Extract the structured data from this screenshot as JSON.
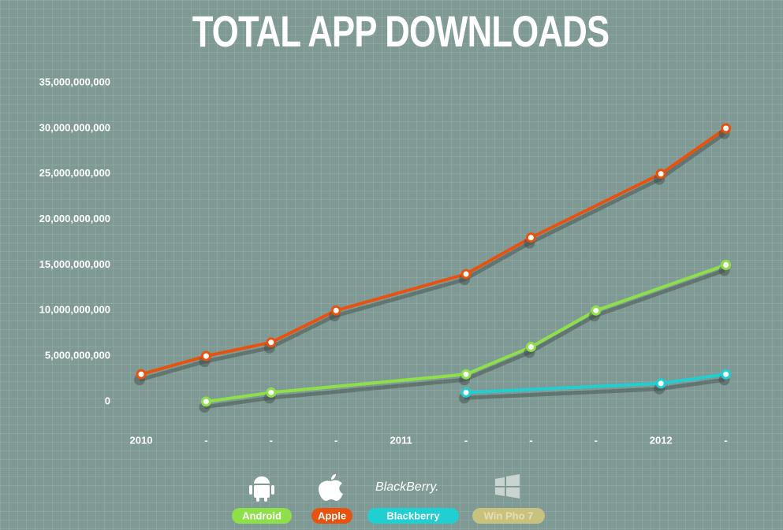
{
  "chart_data": {
    "type": "line",
    "title": "TOTAL APP DOWNLOADS",
    "categories": [
      "2010",
      "-",
      "-",
      "-",
      "2011",
      "-",
      "-",
      "-",
      "2012",
      "-"
    ],
    "series": [
      {
        "name": "Android",
        "color": "#8ee04a",
        "values": [
          null,
          0,
          1000000000,
          null,
          null,
          3000000000,
          6000000000,
          10000000000,
          null,
          15000000000
        ]
      },
      {
        "name": "Apple",
        "color": "#e8520e",
        "values": [
          3000000000,
          5000000000,
          6500000000,
          10000000000,
          null,
          14000000000,
          18000000000,
          null,
          25000000000,
          30000000000
        ]
      },
      {
        "name": "Blackberry",
        "color": "#20cfd2",
        "values": [
          null,
          null,
          null,
          null,
          null,
          1000000000,
          null,
          null,
          2000000000,
          3000000000
        ]
      },
      {
        "name": "Win Pho 7",
        "color": "#c9c27e",
        "values": [
          null,
          null,
          null,
          null,
          null,
          null,
          null,
          null,
          null,
          null
        ]
      }
    ],
    "blackberry_logo": "BlackBerry.",
    "ylim": [
      0,
      35000000000
    ],
    "yticks": [
      0,
      {
        "value": 5000000000,
        "label": "5,000,000,000"
      },
      {
        "value": 10000000000,
        "label": "10,000,000,000"
      },
      {
        "value": 15000000000,
        "label": "15,000,000,000"
      },
      {
        "value": 20000000000,
        "label": "20,000,000,000"
      },
      {
        "value": 25000000000,
        "label": "25,000,000,000"
      },
      {
        "value": 30000000000,
        "label": "30,000,000,000"
      },
      {
        "value": 35000000000,
        "label": "35,000,000,000"
      }
    ],
    "grid": false
  }
}
